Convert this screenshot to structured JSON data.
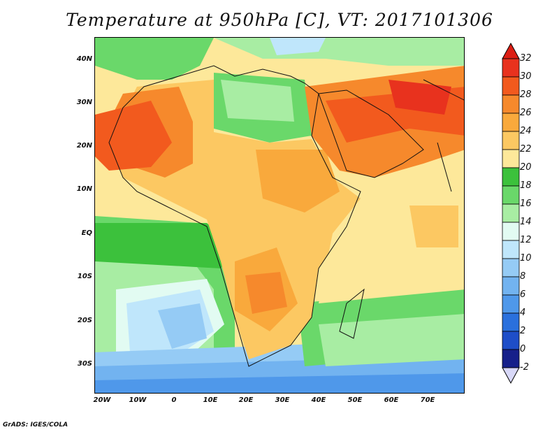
{
  "title": "Temperature at 950hPa [C], VT: 2017101306",
  "lat_labels": [
    "40N",
    "30N",
    "20N",
    "10N",
    "EQ",
    "10S",
    "20S",
    "30S"
  ],
  "lon_labels": [
    "20W",
    "10W",
    "0",
    "10E",
    "20E",
    "30E",
    "40E",
    "50E",
    "60E",
    "70E"
  ],
  "colorbar": {
    "labels": [
      "32",
      "30",
      "28",
      "26",
      "24",
      "22",
      "20",
      "18",
      "16",
      "14",
      "12",
      "10",
      "8",
      "6",
      "4",
      "2",
      "0",
      "-2"
    ],
    "bins": [
      {
        "lo": 30,
        "hi": 32,
        "color": "#e8321e"
      },
      {
        "lo": 28,
        "hi": 30,
        "color": "#f25a1e"
      },
      {
        "lo": 26,
        "hi": 28,
        "color": "#f6892c"
      },
      {
        "lo": 24,
        "hi": 26,
        "color": "#f9a93c"
      },
      {
        "lo": 22,
        "hi": 24,
        "color": "#fcc862"
      },
      {
        "lo": 20,
        "hi": 22,
        "color": "#fde89a"
      },
      {
        "lo": 18,
        "hi": 20,
        "color": "#3cc13c"
      },
      {
        "lo": 16,
        "hi": 18,
        "color": "#6ad86a"
      },
      {
        "lo": 14,
        "hi": 16,
        "color": "#a8eda3"
      },
      {
        "lo": 12,
        "hi": 14,
        "color": "#e2fbf2"
      },
      {
        "lo": 10,
        "hi": 12,
        "color": "#bfe6fb"
      },
      {
        "lo": 8,
        "hi": 10,
        "color": "#95cbf5"
      },
      {
        "lo": 6,
        "hi": 8,
        "color": "#72b3f0"
      },
      {
        "lo": 4,
        "hi": 6,
        "color": "#4f98ea"
      },
      {
        "lo": 2,
        "hi": 4,
        "color": "#2a70dd"
      },
      {
        "lo": 0,
        "hi": 2,
        "color": "#1e4ec8"
      },
      {
        "lo": -2,
        "hi": 0,
        "color": "#16208a"
      }
    ],
    "over_color": "#dc1e14",
    "under_color": "#d8d8f8"
  },
  "credit": "GrADS: IGES/COLA"
}
